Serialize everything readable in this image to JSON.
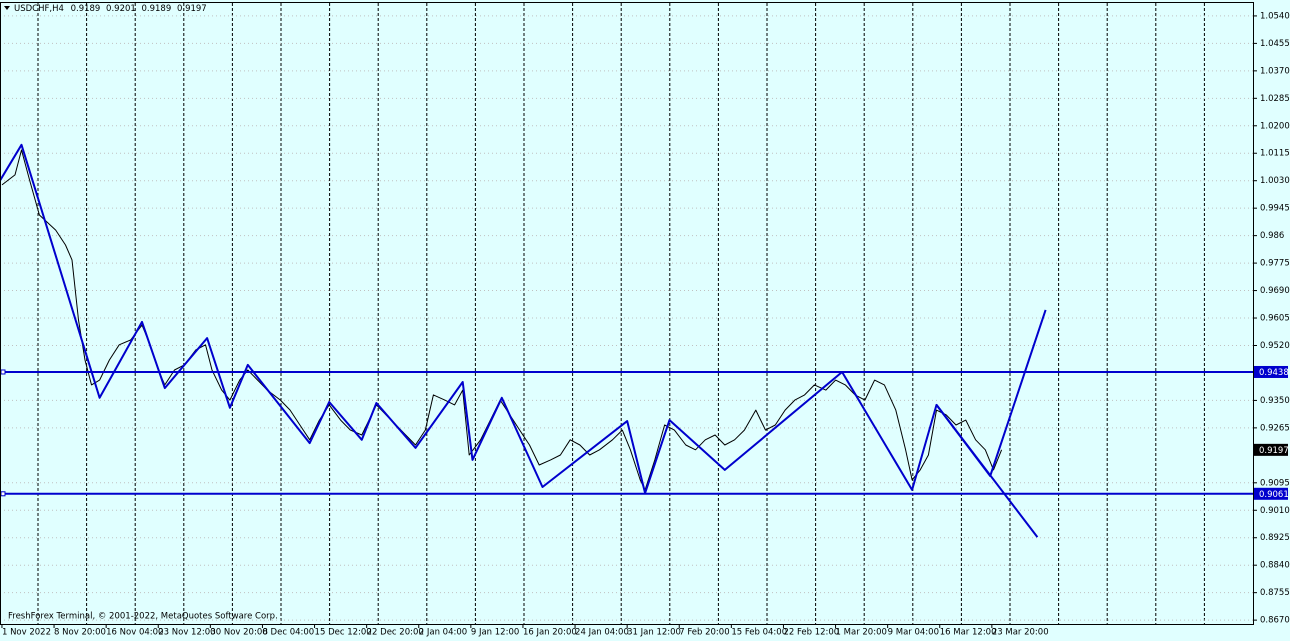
{
  "chart_data": {
    "type": "line",
    "title": "USDCHF,H4",
    "last_bar": [
      0.9189,
      0.9201,
      0.9189,
      0.9197
    ],
    "footer": "FreshForex Terminal, © 2001-2022, MetaQuotes Software Corp.",
    "background": "#e0ffff",
    "grid": true,
    "xlim": [
      -1.2,
      768.4
    ],
    "ylim": [
      0.8658,
      1.058
    ],
    "yticks": [
      {
        "value": 1.054,
        "label": "1.0540"
      },
      {
        "value": 1.0455,
        "label": "1.0455"
      },
      {
        "value": 1.037,
        "label": "1.0370"
      },
      {
        "value": 1.0285,
        "label": "1.0285"
      },
      {
        "value": 1.02,
        "label": "1.0200"
      },
      {
        "value": 1.0115,
        "label": "1.0115"
      },
      {
        "value": 1.003,
        "label": "1.0030"
      },
      0.9945,
      0.986,
      {
        "value": 0.9775,
        "label": "0.9775"
      },
      {
        "value": 0.969,
        "label": "0.9690"
      },
      0.9605,
      {
        "value": 0.952,
        "label": "0.9520"
      },
      {
        "value": 0.935,
        "label": "0.9350"
      },
      0.9265,
      0.9095,
      {
        "value": 0.901,
        "label": "0.9010"
      },
      0.8925,
      {
        "value": 0.884,
        "label": "0.8840"
      },
      0.8755,
      {
        "value": 0.867,
        "label": "0.8670"
      }
    ],
    "xticks": [
      {
        "value": 0,
        "label": "1 Nov 2022"
      },
      {
        "value": 32,
        "label": "8 Nov 20:00"
      },
      {
        "value": 64,
        "label": "16 Nov 04:00"
      },
      {
        "value": 96,
        "label": "23 Nov 12:00"
      },
      {
        "value": 128,
        "label": "30 Nov 20:00"
      },
      {
        "value": 160,
        "label": "8 Dec 04:00"
      },
      {
        "value": 192,
        "label": "15 Dec 12:00"
      },
      {
        "value": 224,
        "label": "22 Dec 20:00"
      },
      {
        "value": 256,
        "label": "2 Jan 04:00"
      },
      {
        "value": 288,
        "label": "9 Jan 12:00"
      },
      {
        "value": 320,
        "label": "16 Jan 20:00"
      },
      {
        "value": 352,
        "label": "24 Jan 04:00"
      },
      {
        "value": 384,
        "label": "31 Jan 12:00"
      },
      {
        "value": 416,
        "label": "7 Feb 20:00"
      },
      {
        "value": 448,
        "label": "15 Feb 04:00"
      },
      {
        "value": 480,
        "label": "22 Feb 12:00"
      },
      {
        "value": 512,
        "label": "1 Mar 20:00"
      },
      {
        "value": 544,
        "label": "9 Mar 04:00"
      },
      {
        "value": 576,
        "label": "16 Mar 12:00"
      },
      {
        "value": 608,
        "label": "23 Mar 20:00"
      }
    ],
    "series": [
      {
        "color": "#000000",
        "line_width": 1,
        "x": [
          0,
          8,
          12,
          17,
          23,
          33,
          39,
          43,
          47,
          51,
          55,
          60,
          66,
          72,
          79,
          86,
          91,
          96,
          100,
          106,
          112,
          119,
          125,
          129,
          135,
          140,
          146,
          151,
          157,
          163,
          171,
          177,
          183,
          189,
          195,
          201,
          208,
          214,
          221,
          230,
          236,
          242,
          248,
          254,
          260,
          265,
          272,
          278,
          283,
          287,
          294,
          300,
          306,
          312,
          318,
          324,
          330,
          337,
          343,
          349,
          355,
          361,
          367,
          375,
          381,
          386,
          392,
          395,
          401,
          407,
          413,
          420,
          426,
          432,
          438,
          444,
          450,
          456,
          463,
          469,
          475,
          481,
          487,
          493,
          499,
          506,
          512,
          518,
          524,
          530,
          536,
          542,
          549,
          555,
          559,
          564,
          569,
          574,
          580,
          586,
          592,
          598,
          604,
          609,
          614
        ],
        "values": [
          1.0017,
          1.0048,
          1.0125,
          1.0032,
          0.9924,
          0.9877,
          0.9831,
          0.9785,
          0.9599,
          0.9475,
          0.9398,
          0.9413,
          0.9475,
          0.9522,
          0.9537,
          0.9583,
          0.9522,
          0.9444,
          0.9398,
          0.9444,
          0.946,
          0.9506,
          0.9522,
          0.9444,
          0.9382,
          0.9351,
          0.9413,
          0.9444,
          0.9413,
          0.9382,
          0.9351,
          0.932,
          0.9274,
          0.9228,
          0.9289,
          0.9336,
          0.9289,
          0.9258,
          0.9243,
          0.9336,
          0.9305,
          0.9274,
          0.9243,
          0.9212,
          0.9258,
          0.9367,
          0.9351,
          0.9336,
          0.9382,
          0.9181,
          0.9228,
          0.9289,
          0.9351,
          0.9305,
          0.9258,
          0.9212,
          0.915,
          0.9166,
          0.9181,
          0.9228,
          0.9212,
          0.9181,
          0.9197,
          0.9228,
          0.9258,
          0.9197,
          0.9104,
          0.9073,
          0.9166,
          0.9274,
          0.9258,
          0.9212,
          0.9197,
          0.9228,
          0.9243,
          0.9212,
          0.9228,
          0.9258,
          0.932,
          0.9258,
          0.9274,
          0.932,
          0.9351,
          0.9367,
          0.9398,
          0.9382,
          0.9413,
          0.9398,
          0.9367,
          0.9351,
          0.9413,
          0.9398,
          0.932,
          0.9197,
          0.9104,
          0.9135,
          0.9181,
          0.932,
          0.9305,
          0.9274,
          0.9289,
          0.9228,
          0.9197,
          0.9135,
          0.9197
        ]
      },
      {
        "color": "#0000cd",
        "line_width": 2,
        "x": [
          -1,
          12,
          60,
          86,
          100,
          126,
          140,
          151,
          189,
          201,
          221,
          230,
          254,
          283,
          289,
          307,
          332,
          384,
          395,
          410,
          444,
          516,
          559,
          574,
          607,
          641
        ],
        "values": [
          1.0032,
          1.0141,
          0.9358,
          0.9593,
          0.9388,
          0.9543,
          0.9327,
          0.946,
          0.9218,
          0.9345,
          0.9228,
          0.9342,
          0.9203,
          0.9407,
          0.9166,
          0.9358,
          0.9082,
          0.9286,
          0.9063,
          0.9289,
          0.9135,
          0.9438,
          0.9073,
          0.9336,
          0.9116,
          0.963
        ]
      },
      {
        "color": "#0000cd",
        "line_width": 2,
        "x": [
          574,
          636
        ],
        "values": [
          0.9336,
          0.8927
        ]
      }
    ],
    "hlines": [
      {
        "value": 0.9438,
        "color": "#0000cd"
      },
      {
        "value": 0.9061,
        "color": "#0000cd"
      }
    ],
    "current_price": 0.9197
  }
}
